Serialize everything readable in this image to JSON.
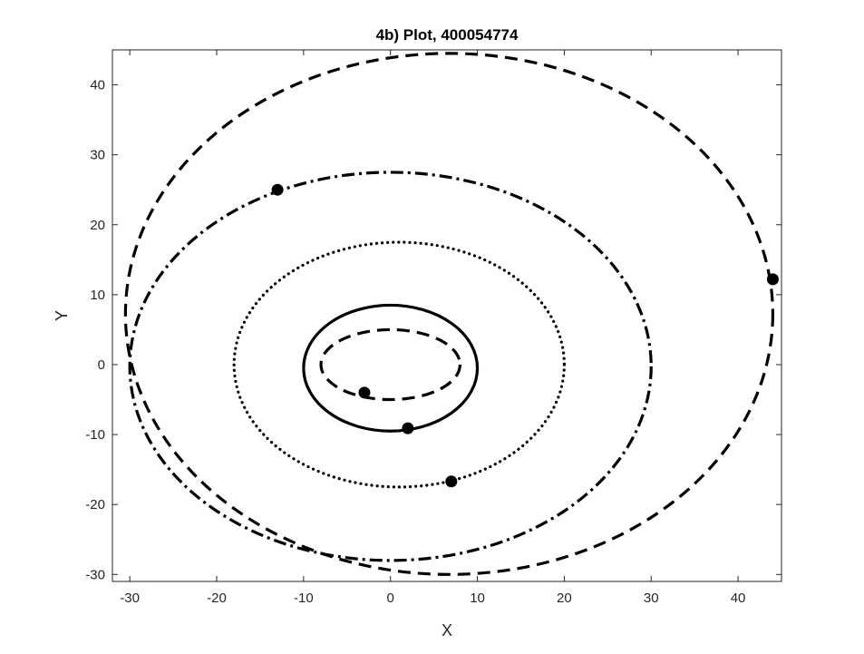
{
  "chart_data": {
    "type": "line",
    "title": "4b) Plot, 400054774",
    "xlabel": "X",
    "ylabel": "Y",
    "xlim": [
      -32,
      45
    ],
    "ylim": [
      -31,
      45
    ],
    "xticks": [
      -30,
      -20,
      -10,
      0,
      10,
      20,
      30,
      40
    ],
    "yticks": [
      -30,
      -20,
      -10,
      0,
      10,
      20,
      30,
      40
    ],
    "xtick_labels": [
      "-30",
      "-20",
      "-10",
      "0",
      "10",
      "20",
      "30",
      "40"
    ],
    "ytick_labels": [
      "-30",
      "-20",
      "-10",
      "0",
      "10",
      "20",
      "30",
      "40"
    ],
    "grid": false,
    "line_color": "#000000",
    "series": [
      {
        "style": "dashed",
        "x_min": -8,
        "x_max": 8,
        "y_min": -5,
        "y_max": 5,
        "marker": {
          "x": -3,
          "y": -4
        }
      },
      {
        "style": "solid",
        "x_min": -10,
        "x_max": 10,
        "y_min": -9.5,
        "y_max": 8.5,
        "marker": {
          "x": 2,
          "y": -9.1
        }
      },
      {
        "style": "dotted",
        "x_min": -18,
        "x_max": 20,
        "y_min": -17.5,
        "y_max": 17.5,
        "marker": {
          "x": 7,
          "y": -16.7
        }
      },
      {
        "style": "dashdot",
        "x_min": -30,
        "x_max": 30,
        "y_min": -28,
        "y_max": 27.5,
        "marker": {
          "x": -13,
          "y": 25
        }
      },
      {
        "style": "dashed",
        "x_min": -30.5,
        "x_max": 44,
        "y_min": -30,
        "y_max": 44.5,
        "marker": {
          "x": 44,
          "y": 12.2
        }
      }
    ]
  }
}
